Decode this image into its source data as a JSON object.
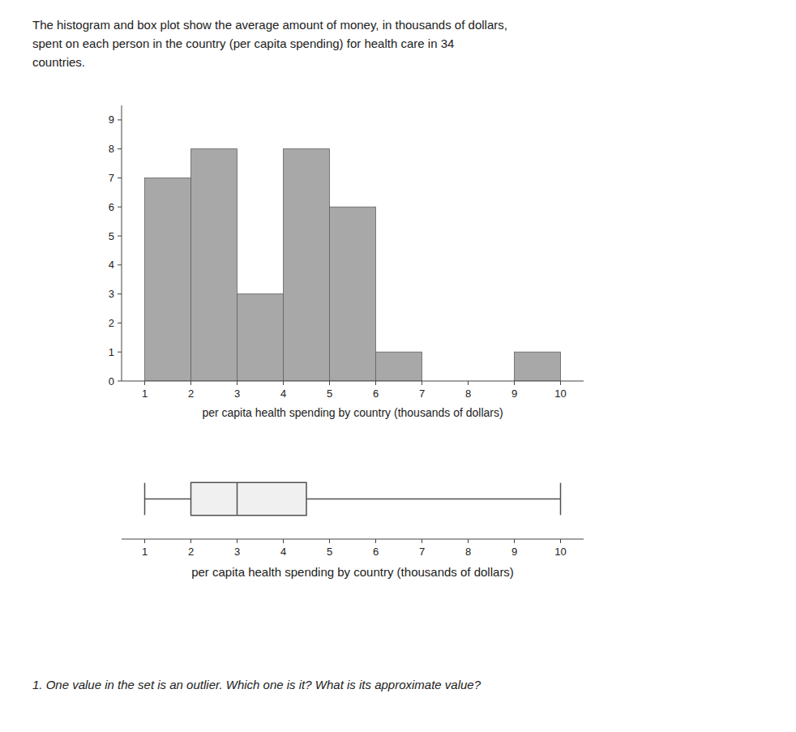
{
  "chart_data": [
    {
      "type": "histogram",
      "annotations": [
        "The histogram and box plot show the average amount of money, in thousands of dollars,",
        "spent on each person in the country (per capita spending) for health care in 34",
        "countries."
      ],
      "xlabel": "per capita health spending by country (thousands of dollars)",
      "bins": [
        1,
        2,
        3,
        4,
        5,
        6,
        7,
        8,
        9,
        10
      ],
      "values": [
        7,
        8,
        3,
        8,
        6,
        1,
        0,
        0,
        1
      ],
      "color": "#a8a8a8",
      "xlim": [
        0.5,
        10.5
      ],
      "ylim": [
        0,
        9.5
      ],
      "xticks": [
        1,
        2,
        3,
        4,
        5,
        6,
        7,
        8,
        9,
        10
      ],
      "yticks": [
        0,
        1,
        2,
        3,
        4,
        5,
        6,
        7,
        8,
        9
      ],
      "grid": false
    },
    {
      "type": "box",
      "annotations": [
        "1.  One value in the set is an outlier. Which one is it? What is its approximate value?"
      ],
      "xlabel": "per capita health spending by country (thousands of dollars)",
      "min": 1,
      "q1": 2,
      "median": 3,
      "q3": 4.5,
      "max": 10,
      "color": "#f0f0f0",
      "xlim": [
        0.5,
        10.5
      ],
      "xticks": [
        1,
        2,
        3,
        4,
        5,
        6,
        7,
        8,
        9,
        10
      ],
      "tick_labels": "x",
      "grid": false
    }
  ]
}
